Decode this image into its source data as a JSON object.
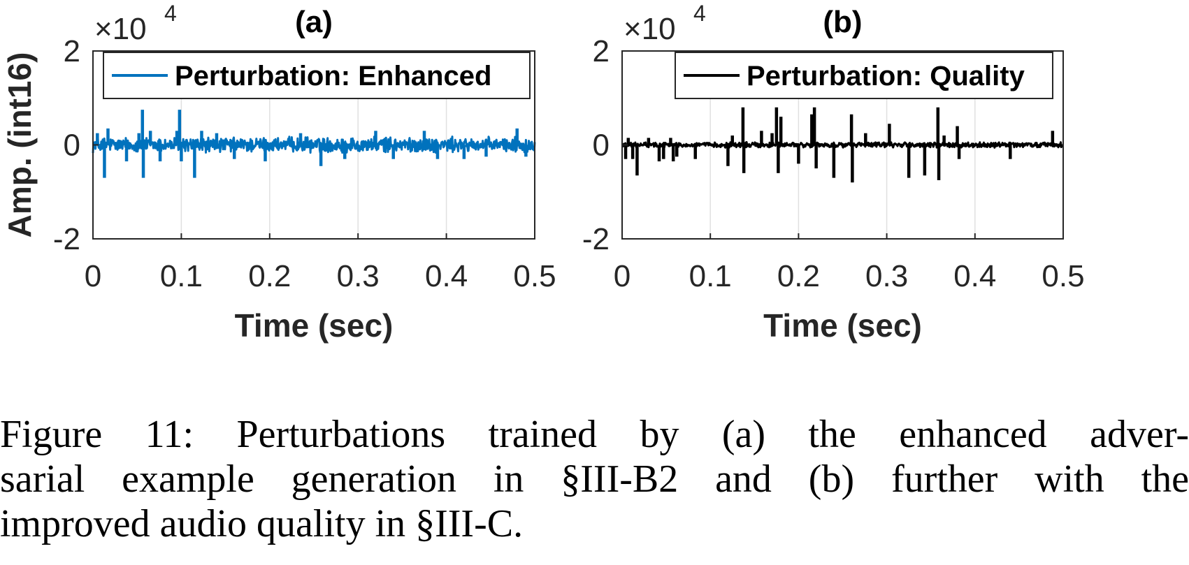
{
  "chart_data": [
    {
      "type": "line",
      "title": "(a)",
      "xlabel": "Time (sec)",
      "ylabel": "Amp. (int16)",
      "y_multiplier": "×10",
      "y_multiplier_exp": "4",
      "xlim": [
        0,
        0.5
      ],
      "ylim": [
        -2,
        2
      ],
      "xticks": [
        "0",
        "0.1",
        "0.2",
        "0.3",
        "0.4",
        "0.5"
      ],
      "yticks": [
        "2",
        "0",
        "-2"
      ],
      "grid": "x",
      "legend_position": "top",
      "series": [
        {
          "name": "Perturbation: Enhanced",
          "color": "#0072BD",
          "noise_amplitude": 0.12,
          "spikes": [
            {
              "x": 0.005,
              "y": 0.25
            },
            {
              "x": 0.013,
              "y": -0.7
            },
            {
              "x": 0.017,
              "y": 0.35
            },
            {
              "x": 0.038,
              "y": -0.35
            },
            {
              "x": 0.052,
              "y": 0.25
            },
            {
              "x": 0.056,
              "y": 0.75
            },
            {
              "x": 0.057,
              "y": -0.7
            },
            {
              "x": 0.065,
              "y": 0.3
            },
            {
              "x": 0.076,
              "y": -0.35
            },
            {
              "x": 0.095,
              "y": 0.3
            },
            {
              "x": 0.098,
              "y": 0.75
            },
            {
              "x": 0.1,
              "y": -0.35
            },
            {
              "x": 0.115,
              "y": -0.7
            },
            {
              "x": 0.123,
              "y": 0.3
            },
            {
              "x": 0.14,
              "y": 0.25
            },
            {
              "x": 0.16,
              "y": -0.3
            },
            {
              "x": 0.195,
              "y": -0.35
            },
            {
              "x": 0.235,
              "y": 0.25
            },
            {
              "x": 0.258,
              "y": -0.45
            },
            {
              "x": 0.285,
              "y": -0.3
            },
            {
              "x": 0.32,
              "y": 0.3
            },
            {
              "x": 0.34,
              "y": -0.3
            },
            {
              "x": 0.375,
              "y": 0.3
            },
            {
              "x": 0.39,
              "y": -0.3
            },
            {
              "x": 0.42,
              "y": -0.3
            },
            {
              "x": 0.445,
              "y": -0.25
            },
            {
              "x": 0.48,
              "y": 0.35
            },
            {
              "x": 0.49,
              "y": -0.25
            }
          ]
        }
      ]
    },
    {
      "type": "line",
      "title": "(b)",
      "xlabel": "Time (sec)",
      "ylabel": "",
      "y_multiplier": "×10",
      "y_multiplier_exp": "4",
      "xlim": [
        0,
        0.5
      ],
      "ylim": [
        -2,
        2
      ],
      "xticks": [
        "0",
        "0.1",
        "0.2",
        "0.3",
        "0.4",
        "0.5"
      ],
      "yticks": [
        "2",
        "0",
        "-2"
      ],
      "grid": "x",
      "legend_position": "top-right",
      "series": [
        {
          "name": "Perturbation: Quality",
          "color": "#000000",
          "noise_amplitude": 0.04,
          "spikes": [
            {
              "x": 0.004,
              "y": -0.3
            },
            {
              "x": 0.007,
              "y": 0.15
            },
            {
              "x": 0.012,
              "y": -0.3
            },
            {
              "x": 0.017,
              "y": -0.65
            },
            {
              "x": 0.03,
              "y": 0.15
            },
            {
              "x": 0.042,
              "y": -0.35
            },
            {
              "x": 0.047,
              "y": -0.3
            },
            {
              "x": 0.055,
              "y": 0.15
            },
            {
              "x": 0.058,
              "y": -0.35
            },
            {
              "x": 0.062,
              "y": -0.25
            },
            {
              "x": 0.083,
              "y": -0.3
            },
            {
              "x": 0.12,
              "y": -0.45
            },
            {
              "x": 0.125,
              "y": 0.2
            },
            {
              "x": 0.137,
              "y": 0.8
            },
            {
              "x": 0.138,
              "y": -0.6
            },
            {
              "x": 0.158,
              "y": 0.3
            },
            {
              "x": 0.17,
              "y": 0.25
            },
            {
              "x": 0.175,
              "y": 0.8
            },
            {
              "x": 0.177,
              "y": -0.6
            },
            {
              "x": 0.18,
              "y": 0.6
            },
            {
              "x": 0.2,
              "y": -0.4
            },
            {
              "x": 0.215,
              "y": 0.65
            },
            {
              "x": 0.218,
              "y": 0.8
            },
            {
              "x": 0.22,
              "y": -0.5
            },
            {
              "x": 0.24,
              "y": -0.7
            },
            {
              "x": 0.26,
              "y": 0.65
            },
            {
              "x": 0.261,
              "y": -0.8
            },
            {
              "x": 0.276,
              "y": 0.25
            },
            {
              "x": 0.303,
              "y": 0.45
            },
            {
              "x": 0.325,
              "y": -0.7
            },
            {
              "x": 0.343,
              "y": -0.65
            },
            {
              "x": 0.358,
              "y": 0.8
            },
            {
              "x": 0.359,
              "y": -0.75
            },
            {
              "x": 0.365,
              "y": 0.2
            },
            {
              "x": 0.38,
              "y": 0.4
            },
            {
              "x": 0.382,
              "y": -0.3
            },
            {
              "x": 0.44,
              "y": -0.3
            },
            {
              "x": 0.488,
              "y": 0.3
            }
          ]
        }
      ]
    }
  ],
  "caption": {
    "lines": [
      "Figure 11: Perturbations trained by (a) the enhanced adver-",
      "sarial example generation in §III-B2 and (b) further with the",
      "improved audio quality in §III-C."
    ]
  }
}
